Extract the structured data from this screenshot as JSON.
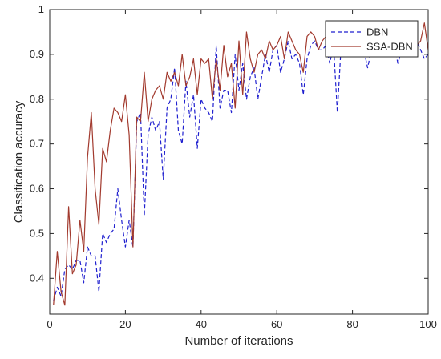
{
  "chart_data": {
    "type": "line",
    "title": "",
    "xlabel": "Number of iterations",
    "ylabel": "Classification accuracy",
    "xlim": [
      0,
      100
    ],
    "ylim": [
      0.32,
      1.0
    ],
    "xticks": [
      0,
      20,
      40,
      60,
      80,
      100
    ],
    "yticks": [
      0.4,
      0.5,
      0.6,
      0.7,
      0.8,
      0.9,
      1
    ],
    "grid": false,
    "legend_position": "top-right",
    "series": [
      {
        "name": "DBN",
        "color": "#1f1fcf",
        "style": "dashed",
        "x": [
          1,
          2,
          3,
          4,
          5,
          6,
          7,
          8,
          9,
          10,
          11,
          12,
          13,
          14,
          15,
          16,
          17,
          18,
          19,
          20,
          21,
          22,
          23,
          24,
          25,
          26,
          27,
          28,
          29,
          30,
          31,
          32,
          33,
          34,
          35,
          36,
          37,
          38,
          39,
          40,
          41,
          42,
          43,
          44,
          45,
          46,
          47,
          48,
          49,
          50,
          51,
          52,
          53,
          54,
          55,
          56,
          57,
          58,
          59,
          60,
          61,
          62,
          63,
          64,
          65,
          66,
          67,
          68,
          69,
          70,
          71,
          72,
          73,
          74,
          75,
          76,
          77,
          78,
          79,
          80,
          81,
          82,
          83,
          84,
          85,
          86,
          87,
          88,
          89,
          90,
          91,
          92,
          93,
          94,
          95,
          96,
          97,
          98,
          99,
          100
        ],
        "y": [
          0.35,
          0.38,
          0.36,
          0.42,
          0.43,
          0.42,
          0.44,
          0.44,
          0.39,
          0.47,
          0.45,
          0.45,
          0.37,
          0.5,
          0.48,
          0.5,
          0.51,
          0.6,
          0.53,
          0.47,
          0.53,
          0.47,
          0.75,
          0.77,
          0.54,
          0.72,
          0.76,
          0.73,
          0.75,
          0.62,
          0.78,
          0.8,
          0.87,
          0.73,
          0.7,
          0.84,
          0.76,
          0.81,
          0.69,
          0.8,
          0.78,
          0.77,
          0.75,
          0.92,
          0.78,
          0.82,
          0.82,
          0.77,
          0.9,
          0.82,
          0.88,
          0.8,
          0.85,
          0.87,
          0.8,
          0.85,
          0.9,
          0.86,
          0.91,
          0.92,
          0.86,
          0.89,
          0.93,
          0.89,
          0.9,
          0.88,
          0.81,
          0.89,
          0.92,
          0.93,
          0.91,
          0.91,
          0.92,
          0.88,
          0.92,
          0.77,
          0.92,
          0.91,
          0.91,
          0.92,
          0.91,
          0.93,
          0.91,
          0.87,
          0.91,
          0.93,
          0.92,
          0.92,
          0.93,
          0.91,
          0.92,
          0.88,
          0.91,
          0.93,
          0.91,
          0.92,
          0.93,
          0.91,
          0.89,
          0.9
        ]
      },
      {
        "name": "SSA-DBN",
        "color": "#a23a2e",
        "style": "solid",
        "x": [
          1,
          2,
          3,
          4,
          5,
          6,
          7,
          8,
          9,
          10,
          11,
          12,
          13,
          14,
          15,
          16,
          17,
          18,
          19,
          20,
          21,
          22,
          23,
          24,
          25,
          26,
          27,
          28,
          29,
          30,
          31,
          32,
          33,
          34,
          35,
          36,
          37,
          38,
          39,
          40,
          41,
          42,
          43,
          44,
          45,
          46,
          47,
          48,
          49,
          50,
          51,
          52,
          53,
          54,
          55,
          56,
          57,
          58,
          59,
          60,
          61,
          62,
          63,
          64,
          65,
          66,
          67,
          68,
          69,
          70,
          71,
          72,
          73,
          74,
          75,
          76,
          77,
          78,
          79,
          80,
          81,
          82,
          83,
          84,
          85,
          86,
          87,
          88,
          89,
          90,
          91,
          92,
          93,
          94,
          95,
          96,
          97,
          98,
          99,
          100
        ],
        "y": [
          0.34,
          0.46,
          0.37,
          0.34,
          0.56,
          0.41,
          0.43,
          0.53,
          0.46,
          0.67,
          0.77,
          0.6,
          0.52,
          0.69,
          0.66,
          0.73,
          0.78,
          0.77,
          0.75,
          0.81,
          0.72,
          0.47,
          0.76,
          0.75,
          0.86,
          0.75,
          0.8,
          0.82,
          0.83,
          0.8,
          0.86,
          0.84,
          0.86,
          0.83,
          0.9,
          0.83,
          0.85,
          0.89,
          0.81,
          0.89,
          0.88,
          0.89,
          0.8,
          0.89,
          0.82,
          0.92,
          0.85,
          0.88,
          0.78,
          0.93,
          0.81,
          0.95,
          0.89,
          0.86,
          0.9,
          0.91,
          0.89,
          0.93,
          0.91,
          0.92,
          0.94,
          0.89,
          0.95,
          0.93,
          0.91,
          0.9,
          0.86,
          0.94,
          0.95,
          0.94,
          0.91,
          0.93,
          0.94,
          0.92,
          0.95,
          0.93,
          0.96,
          0.93,
          0.95,
          0.93,
          0.94,
          0.95,
          0.93,
          0.92,
          0.95,
          0.94,
          0.96,
          0.95,
          0.93,
          0.96,
          0.95,
          0.93,
          0.92,
          0.95,
          0.93,
          0.94,
          0.92,
          0.93,
          0.97,
          0.91
        ]
      }
    ]
  }
}
